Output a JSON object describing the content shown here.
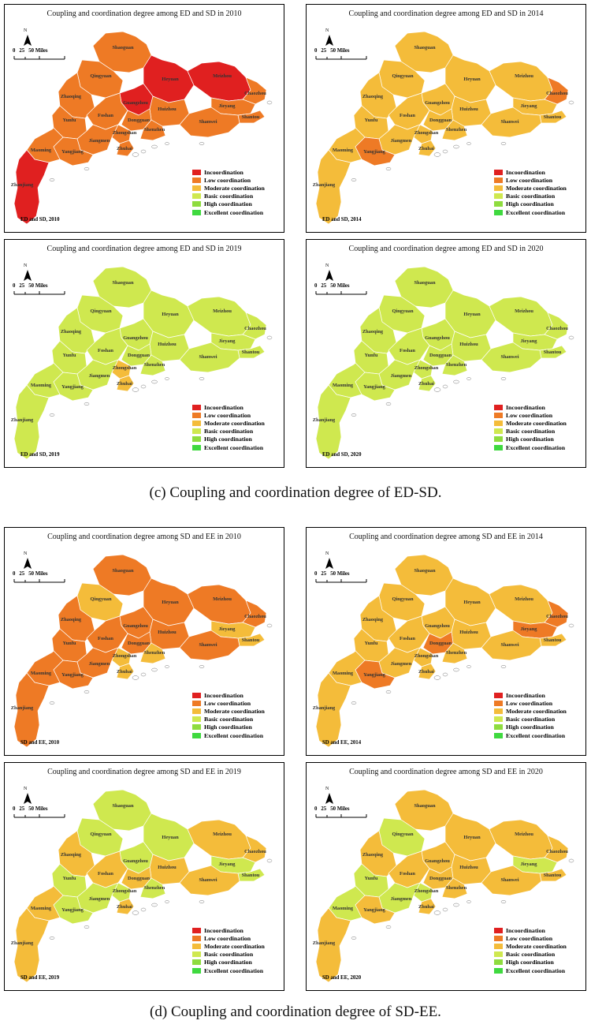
{
  "legend": [
    {
      "label": "Incoordination",
      "color": "#e02020"
    },
    {
      "label": "Low coordination",
      "color": "#ee7a25"
    },
    {
      "label": "Moderate coordination",
      "color": "#f4bc3a"
    },
    {
      "label": "Basic coordination",
      "color": "#cfe84f"
    },
    {
      "label": "High coordination",
      "color": "#8edc3e"
    },
    {
      "label": "Excellent coordination",
      "color": "#3fd93f"
    }
  ],
  "scale": {
    "north": "N",
    "labels": [
      "0",
      "25",
      "50 Miles"
    ]
  },
  "cities": [
    "Shaoguan",
    "Qingyuan",
    "Heyuan",
    "Meizhou",
    "Chaozhou",
    "Zhaoqing",
    "Guangzhou",
    "Huizhou",
    "Jieyang",
    "Shantou",
    "Yunfu",
    "Foshan",
    "Dongguan",
    "Shanwei",
    "Zhongshan",
    "Shenzhen",
    "Jiangmen",
    "Zhuhai",
    "Maoming",
    "Yangjiang",
    "Zhanjiang"
  ],
  "captions": {
    "c": "(c) Coupling and coordination degree of ED-SD.",
    "d": "(d) Coupling and coordination degree of SD-EE."
  },
  "panels": [
    {
      "title": "Coupling and coordination degree among ED and SD in 2010",
      "footer": "ED and SD, 2010",
      "base": 1,
      "overrides": {
        "Heyuan": 0,
        "Meizhou": 0,
        "Guangzhou": 0,
        "Zhanjiang": 0
      }
    },
    {
      "title": "Coupling and coordination degree among ED and SD in 2014",
      "footer": "ED and SD, 2014",
      "base": 2,
      "overrides": {
        "Chaozhou": 1,
        "Yangjiang": 1
      }
    },
    {
      "title": "Coupling and coordination degree among ED and SD in 2019",
      "footer": "ED and SD, 2019",
      "base": 3,
      "overrides": {
        "Zhongshan": 2,
        "Zhuhai": 2
      }
    },
    {
      "title": "Coupling and coordination degree among ED and SD in 2020",
      "footer": "ED and SD, 2020",
      "base": 3,
      "overrides": {}
    },
    {
      "title": "Coupling and coordination degree among SD and EE in 2010",
      "footer": "SD and EE, 2010",
      "base": 1,
      "overrides": {
        "Qingyuan": 2,
        "Jieyang": 2,
        "Shantou": 2,
        "Zhongshan": 2,
        "Shenzhen": 2,
        "Zhuhai": 2
      }
    },
    {
      "title": "Coupling and coordination degree among SD and EE in 2014",
      "footer": "SD and EE, 2014",
      "base": 2,
      "overrides": {
        "Jieyang": 1,
        "Chaozhou": 1,
        "Dongguan": 1,
        "Yangjiang": 1
      }
    },
    {
      "title": "Coupling and coordination degree among SD and EE in 2019",
      "footer": "SD and EE, 2019",
      "base": 3,
      "overrides": {
        "Zhaoqing": 2,
        "Meizhou": 2,
        "Chaozhou": 2,
        "Maoming": 2,
        "Zhanjiang": 2,
        "Foshan": 2,
        "Huizhou": 2,
        "Dongguan": 2,
        "Shanwei": 2,
        "Zhuhai": 2
      }
    },
    {
      "title": "Coupling and coordination degree among SD and EE in 2020",
      "footer": "SD and EE, 2020",
      "base": 2,
      "overrides": {
        "Qingyuan": 3,
        "Yunfu": 3,
        "Maoming": 3,
        "Jieyang": 3,
        "Jiangmen": 3,
        "Zhongshan": 3
      }
    }
  ]
}
